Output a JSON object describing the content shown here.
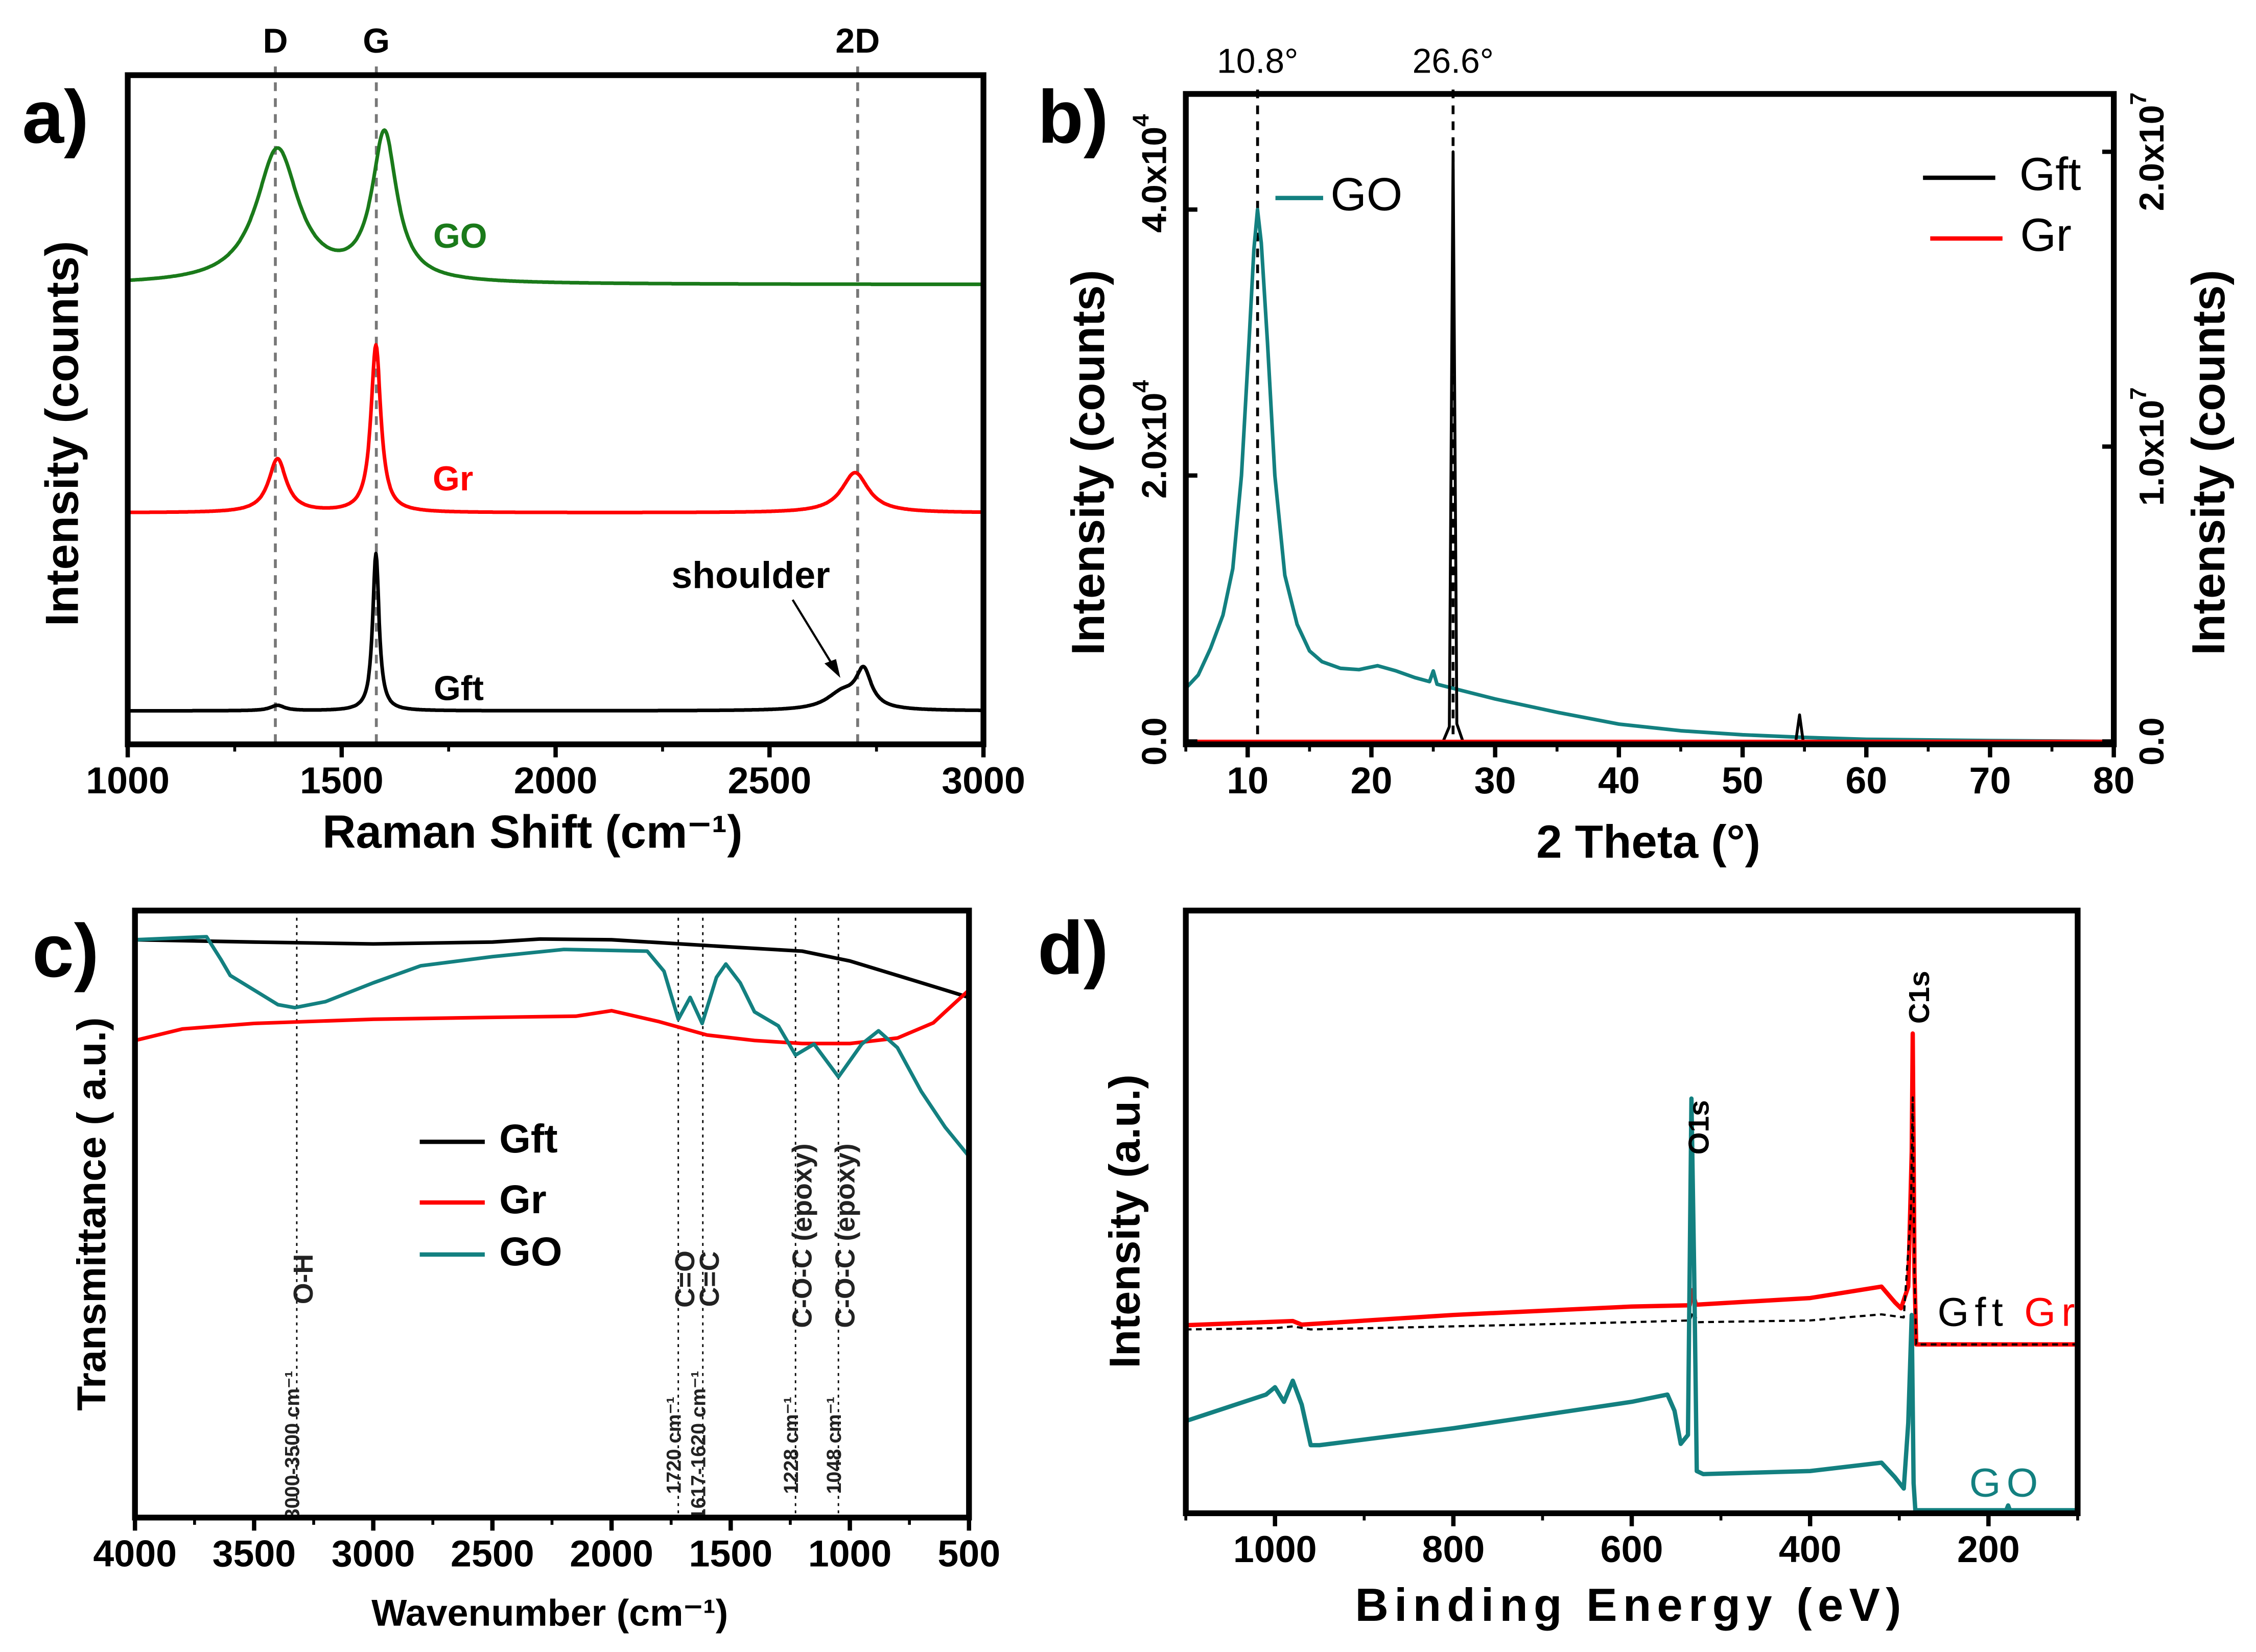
{
  "colors": {
    "GO_a": "#1a7a1a",
    "Gr": "#ff0000",
    "Gft": "#000000",
    "GO": "#138080"
  },
  "chart_data": [
    {
      "panel": "a",
      "panel_label": "a)",
      "type": "line",
      "xlabel": "Raman Shift (cm⁻¹)",
      "ylabel": "Intensity (counts)",
      "xlim": [
        1000,
        3000
      ],
      "ylim": [
        0,
        100
      ],
      "xticks": [
        1000,
        1500,
        2000,
        2500,
        3000
      ],
      "xtick_labels": [
        "1000",
        "1500",
        "2000",
        "2500",
        "3000"
      ],
      "peak_markers": [
        {
          "label": "D",
          "x": 1345
        },
        {
          "label": "G",
          "x": 1581
        },
        {
          "label": "2D",
          "x": 2706
        }
      ],
      "annotations": [
        {
          "text": "shoulder",
          "x": 2680
        }
      ],
      "series": [
        {
          "name": "GO",
          "label": "GO",
          "color": "#1a7a1a",
          "baseline": 68.7,
          "peaks": [
            {
              "center": 1350,
              "height": 20,
              "hwhm": 60
            },
            {
              "center": 1600,
              "height": 22,
              "hwhm": 35
            }
          ]
        },
        {
          "name": "Gr",
          "label": "Gr",
          "color": "#ff0000",
          "baseline": 34.6,
          "peaks": [
            {
              "center": 1350,
              "height": 8,
              "hwhm": 25
            },
            {
              "center": 1580,
              "height": 25,
              "hwhm": 14
            },
            {
              "center": 2700,
              "height": 6,
              "hwhm": 38
            }
          ]
        },
        {
          "name": "Gft",
          "label": "Gft",
          "color": "#000000",
          "baseline": 5,
          "peaks": [
            {
              "center": 1350,
              "height": 0.8,
              "hwhm": 20
            },
            {
              "center": 1580,
              "height": 23.5,
              "hwhm": 9
            },
            {
              "center": 2720,
              "height": 5.5,
              "hwhm": 22
            },
            {
              "center": 2670,
              "height": 2.5,
              "hwhm": 45
            }
          ]
        }
      ]
    },
    {
      "panel": "b",
      "panel_label": "b)",
      "type": "line",
      "xlabel": "2 Theta (°)",
      "ylabel_left": "Intensity (counts)",
      "ylabel_right": "Intensity (counts)",
      "xlim": [
        5,
        80
      ],
      "ylim_left": [
        0,
        40000
      ],
      "ylim_right": [
        0,
        20000000
      ],
      "xticks": [
        10,
        20,
        30,
        40,
        50,
        60,
        70,
        80
      ],
      "xtick_labels": [
        "10",
        "20",
        "30",
        "40",
        "50",
        "60",
        "70",
        "80"
      ],
      "yticks_left": [
        0,
        20000,
        40000
      ],
      "ytick_labels_left": [
        "0.0",
        "2.0x10^4",
        "4.0x10^4"
      ],
      "yticks_right": [
        0,
        10000000,
        20000000
      ],
      "ytick_labels_right": [
        "0.0",
        "1.0x10^7",
        "2.0x10^7"
      ],
      "peak_markers": [
        {
          "label": "10.8°",
          "x": 10.8
        },
        {
          "label": "26.6°",
          "x": 26.6
        }
      ],
      "legend": [
        "GO",
        "Gft",
        "Gr"
      ],
      "series": [
        {
          "name": "GO",
          "label": "GO",
          "axis": "left",
          "color": "#138080",
          "points": [
            [
              5,
              4000
            ],
            [
              6,
              5000
            ],
            [
              7,
              7000
            ],
            [
              8,
              9500
            ],
            [
              8.8,
              13000
            ],
            [
              9.5,
              20000
            ],
            [
              10.1,
              30000
            ],
            [
              10.5,
              37000
            ],
            [
              10.8,
              40000
            ],
            [
              11.1,
              37500
            ],
            [
              11.6,
              30000
            ],
            [
              12.2,
              20000
            ],
            [
              13,
              12500
            ],
            [
              14,
              8800
            ],
            [
              15,
              6800
            ],
            [
              16,
              6000
            ],
            [
              17.5,
              5500
            ],
            [
              19,
              5400
            ],
            [
              20.5,
              5700
            ],
            [
              22,
              5300
            ],
            [
              23.5,
              4800
            ],
            [
              24.7,
              4500
            ],
            [
              25,
              5300
            ],
            [
              25.3,
              4300
            ],
            [
              27,
              3900
            ],
            [
              30,
              3200
            ],
            [
              35,
              2200
            ],
            [
              40,
              1300
            ],
            [
              45,
              800
            ],
            [
              50,
              500
            ],
            [
              55,
              300
            ],
            [
              60,
              160
            ],
            [
              70,
              60
            ],
            [
              80,
              0
            ]
          ]
        },
        {
          "name": "Gft",
          "label": "Gft",
          "axis": "right",
          "color": "#000000",
          "points": [
            [
              5,
              0
            ],
            [
              25.8,
              0
            ],
            [
              26.3,
              500000
            ],
            [
              26.6,
              20000000
            ],
            [
              26.9,
              600000
            ],
            [
              27.4,
              0
            ],
            [
              54.3,
              0
            ],
            [
              54.6,
              900000
            ],
            [
              54.9,
              0
            ],
            [
              80,
              0
            ]
          ]
        },
        {
          "name": "Gr",
          "label": "Gr",
          "axis": "right",
          "color": "#ff0000",
          "points": [
            [
              5,
              0
            ],
            [
              80,
              0
            ]
          ]
        }
      ]
    },
    {
      "panel": "c",
      "panel_label": "c)",
      "type": "line",
      "xlabel": "Wavenumber (cm⁻¹)",
      "ylabel": "Transmittance ( a.u.)",
      "xlim": [
        4000,
        500
      ],
      "ylim": [
        0,
        100
      ],
      "xticks": [
        4000,
        3500,
        3000,
        2500,
        2000,
        1500,
        1000,
        500
      ],
      "xtick_labels": [
        "4000",
        "3500",
        "3000",
        "2500",
        "2000",
        "1500",
        "1000",
        "500"
      ],
      "band_markers": [
        {
          "x": 3321,
          "group": "O-H",
          "position": "3000-3500 cm⁻¹"
        },
        {
          "x": 1720,
          "group": "C=O",
          "position": "1720 cm⁻¹"
        },
        {
          "x": 1617,
          "group": "C=C",
          "position": "1617-1620 cm⁻¹"
        },
        {
          "x": 1228,
          "group": "C-O-C (epoxy)",
          "position": "1228 cm⁻¹"
        },
        {
          "x": 1048,
          "group": "C-O-C (epoxy)",
          "position": "1048 cm⁻¹"
        }
      ],
      "legend": [
        "Gft",
        "Gr",
        "GO"
      ],
      "series": [
        {
          "name": "Gft",
          "label": "Gft",
          "color": "#000000",
          "points": [
            [
              4000,
              95.2
            ],
            [
              3500,
              94.8
            ],
            [
              3000,
              94.5
            ],
            [
              2500,
              94.8
            ],
            [
              2300,
              95.3
            ],
            [
              2000,
              95.2
            ],
            [
              1500,
              94
            ],
            [
              1200,
              93.3
            ],
            [
              1000,
              91.7
            ],
            [
              800,
              89.3
            ],
            [
              600,
              86.9
            ],
            [
              500,
              85.7
            ]
          ]
        },
        {
          "name": "Gr",
          "label": "Gr",
          "color": "#ff0000",
          "points": [
            [
              4000,
              0
            ],
            [
              4000,
              78.6
            ],
            [
              3800,
              80.5
            ],
            [
              3500,
              81.4
            ],
            [
              3000,
              82.1
            ],
            [
              2500,
              82.4
            ],
            [
              2150,
              82.6
            ],
            [
              2000,
              83.5
            ],
            [
              1800,
              81.7
            ],
            [
              1600,
              79.5
            ],
            [
              1400,
              78.6
            ],
            [
              1200,
              78.1
            ],
            [
              1000,
              78.1
            ],
            [
              800,
              79
            ],
            [
              650,
              81.5
            ],
            [
              600,
              83.3
            ],
            [
              500,
              86.9
            ]
          ]
        },
        {
          "name": "GO",
          "label": "GO",
          "color": "#138080",
          "points": [
            [
              4000,
              95.2
            ],
            [
              3700,
              95.7
            ],
            [
              3640,
              92
            ],
            [
              3600,
              89.3
            ],
            [
              3500,
              86.9
            ],
            [
              3400,
              84.5
            ],
            [
              3330,
              84
            ],
            [
              3200,
              85
            ],
            [
              3000,
              88.1
            ],
            [
              2800,
              90.9
            ],
            [
              2500,
              92.4
            ],
            [
              2200,
              93.6
            ],
            [
              1850,
              93.3
            ],
            [
              1780,
              90
            ],
            [
              1720,
              82.1
            ],
            [
              1670,
              85.7
            ],
            [
              1620,
              81.4
            ],
            [
              1560,
              89
            ],
            [
              1520,
              91.2
            ],
            [
              1460,
              88.1
            ],
            [
              1400,
              83.3
            ],
            [
              1300,
              81
            ],
            [
              1228,
              76.2
            ],
            [
              1150,
              78
            ],
            [
              1048,
              72.6
            ],
            [
              950,
              78
            ],
            [
              880,
              80.2
            ],
            [
              800,
              77.4
            ],
            [
              700,
              70.2
            ],
            [
              600,
              64.3
            ],
            [
              500,
              59.5
            ]
          ]
        }
      ]
    },
    {
      "panel": "d",
      "panel_label": "d)",
      "type": "line",
      "xlabel": "Binding Energy (eV)",
      "ylabel": "Intensity (a.u.)",
      "xlim": [
        1100,
        100
      ],
      "ylim": [
        0,
        100
      ],
      "xticks": [
        1000,
        800,
        600,
        400,
        200
      ],
      "xtick_labels": [
        "1000",
        "800",
        "600",
        "400",
        "200"
      ],
      "peak_labels": [
        {
          "label": "O1s",
          "x": 532
        },
        {
          "label": "C1s",
          "x": 285
        }
      ],
      "series_labels": [
        {
          "text": "Gft",
          "color": "#000000"
        },
        {
          "text": "Gr",
          "color": "#ff0000"
        },
        {
          "text": "GO",
          "color": "#138080"
        }
      ],
      "series": [
        {
          "name": "Gr",
          "label": "Gr",
          "color": "#ff0000",
          "dash": false,
          "points": [
            [
              1100,
              31.2
            ],
            [
              980,
              31.9
            ],
            [
              970,
              31.3
            ],
            [
              800,
              32.9
            ],
            [
              600,
              34.3
            ],
            [
              535,
              34.5
            ],
            [
              532,
              37
            ],
            [
              528,
              34.6
            ],
            [
              400,
              35.7
            ],
            [
              320,
              37.6
            ],
            [
              305,
              35
            ],
            [
              298,
              34
            ],
            [
              290,
              37.6
            ],
            [
              286,
              60
            ],
            [
              285,
              79.6
            ],
            [
              283,
              40
            ],
            [
              281,
              28
            ],
            [
              100,
              28
            ]
          ]
        },
        {
          "name": "Gft",
          "label": "Gft",
          "color": "#000000",
          "dash": true,
          "points": [
            [
              1100,
              30.5
            ],
            [
              1000,
              30.7
            ],
            [
              980,
              31
            ],
            [
              960,
              30.5
            ],
            [
              800,
              31
            ],
            [
              600,
              31.7
            ],
            [
              535,
              32
            ],
            [
              531,
              33.5
            ],
            [
              526,
              31.7
            ],
            [
              400,
              32
            ],
            [
              320,
              33
            ],
            [
              295,
              32.5
            ],
            [
              287,
              50
            ],
            [
              285,
              69
            ],
            [
              283,
              40
            ],
            [
              281,
              28
            ],
            [
              100,
              28
            ]
          ]
        },
        {
          "name": "GO",
          "label": "GO",
          "color": "#138080",
          "dash": false,
          "points": [
            [
              1100,
              15.3
            ],
            [
              1010,
              19.7
            ],
            [
              1000,
              20.9
            ],
            [
              990,
              18.5
            ],
            [
              980,
              22
            ],
            [
              970,
              18
            ],
            [
              960,
              11.3
            ],
            [
              950,
              11.3
            ],
            [
              800,
              14.1
            ],
            [
              600,
              18.5
            ],
            [
              560,
              19.7
            ],
            [
              552,
              17
            ],
            [
              545,
              11.5
            ],
            [
              537,
              13
            ],
            [
              533,
              68.8
            ],
            [
              530,
              40
            ],
            [
              527,
              7
            ],
            [
              520,
              6.5
            ],
            [
              400,
              7
            ],
            [
              320,
              8.4
            ],
            [
              305,
              6
            ],
            [
              295,
              4.1
            ],
            [
              290,
              15
            ],
            [
              286,
              32.9
            ],
            [
              284,
              5
            ],
            [
              282,
              0.5
            ],
            [
              180,
              0.5
            ],
            [
              178,
              1.3
            ],
            [
              176,
              0.5
            ],
            [
              100,
              0.5
            ]
          ]
        }
      ]
    }
  ]
}
